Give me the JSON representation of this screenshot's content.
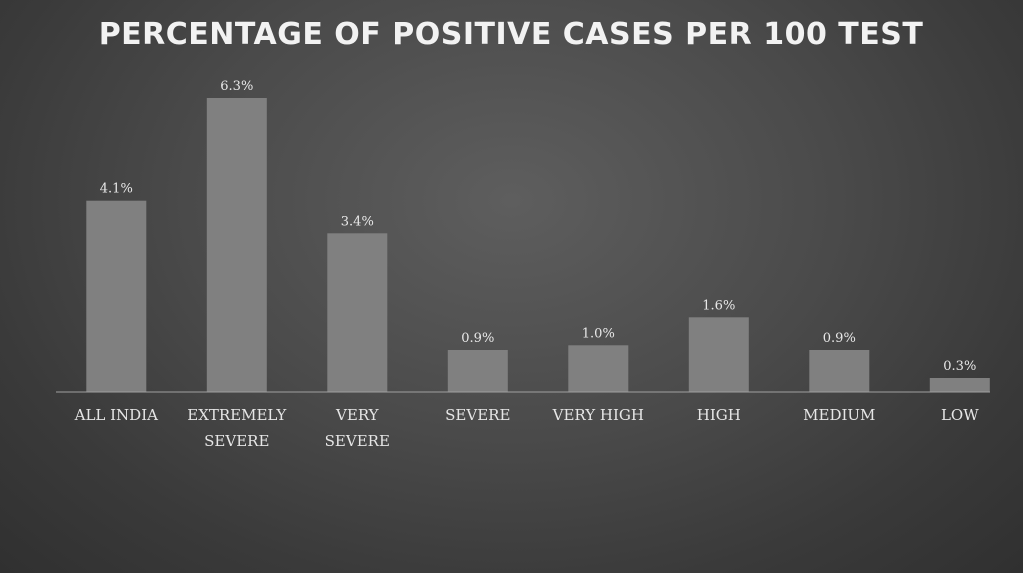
{
  "chart_data": {
    "type": "bar",
    "title": "PERCENTAGE OF POSITIVE CASES PER 100 TEST",
    "xlabel": "",
    "ylabel": "",
    "categories": [
      "ALL INDIA",
      "EXTREMELY SEVERE",
      "VERY SEVERE",
      "SEVERE",
      "VERY HIGH",
      "HIGH",
      "MEDIUM",
      "LOW"
    ],
    "category_lines": [
      [
        "ALL INDIA"
      ],
      [
        "EXTREMELY",
        "SEVERE"
      ],
      [
        "VERY",
        "SEVERE"
      ],
      [
        "SEVERE"
      ],
      [
        "VERY HIGH"
      ],
      [
        "HIGH"
      ],
      [
        "MEDIUM"
      ],
      [
        "LOW"
      ]
    ],
    "values": [
      4.1,
      6.3,
      3.4,
      0.9,
      1.0,
      1.6,
      0.9,
      0.3
    ],
    "data_labels": [
      "4.1%",
      "6.3%",
      "3.4%",
      "0.9%",
      "1.0%",
      "1.6%",
      "0.9%",
      "0.3%"
    ],
    "ylim": [
      0,
      6.3
    ],
    "grid": false,
    "legend": "none",
    "bar_color": "#808080"
  }
}
